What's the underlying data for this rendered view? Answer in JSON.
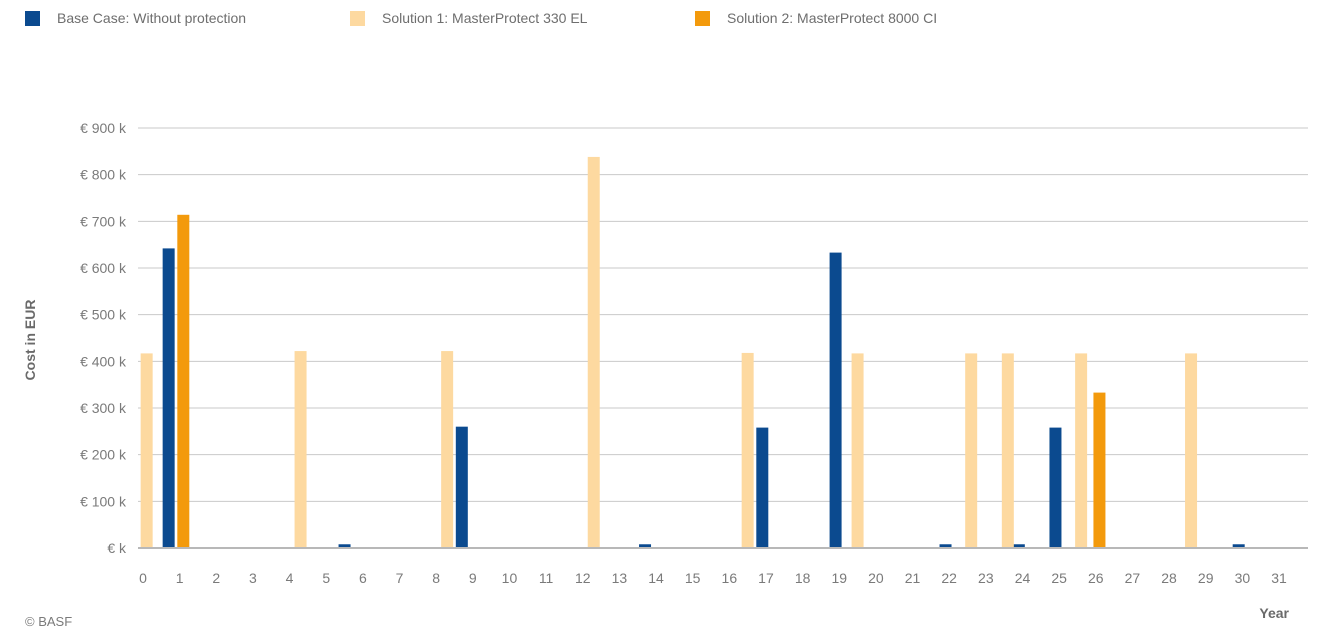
{
  "chart_data": {
    "type": "bar",
    "title": "",
    "xlabel": "Year",
    "ylabel": "Cost in EUR",
    "ylim": [
      0,
      900
    ],
    "yticks": [
      0,
      100,
      200,
      300,
      400,
      500,
      600,
      700,
      800,
      900
    ],
    "ytick_labels": [
      "€ k",
      "€ 100 k",
      "€ 200 k",
      "€ 300 k",
      "€ 400 k",
      "€ 500 k",
      "€ 600 k",
      "€ 700 k",
      "€ 800 k",
      "€ 900 k"
    ],
    "xlim": [
      0,
      31
    ],
    "xticks": [
      0,
      1,
      2,
      3,
      4,
      5,
      6,
      7,
      8,
      9,
      10,
      11,
      12,
      13,
      14,
      15,
      16,
      17,
      18,
      19,
      20,
      21,
      22,
      23,
      24,
      25,
      26,
      27,
      28,
      29,
      30,
      31
    ],
    "grid": true,
    "legend_position": "top-left",
    "series": [
      {
        "name": "Base Case: Without protection",
        "color": "#0b4a8f",
        "points": [
          {
            "x": 0.7,
            "y": 642
          },
          {
            "x": 5.5,
            "y": 8
          },
          {
            "x": 8.7,
            "y": 260
          },
          {
            "x": 13.7,
            "y": 8
          },
          {
            "x": 16.9,
            "y": 258
          },
          {
            "x": 18.9,
            "y": 633
          },
          {
            "x": 21.9,
            "y": 8
          },
          {
            "x": 23.9,
            "y": 8
          },
          {
            "x": 24.9,
            "y": 258
          },
          {
            "x": 29.9,
            "y": 8
          }
        ]
      },
      {
        "name": "Solution 1: MasterProtect 330 EL",
        "color": "#fdd9a0",
        "points": [
          {
            "x": 0.1,
            "y": 417
          },
          {
            "x": 4.3,
            "y": 422
          },
          {
            "x": 8.3,
            "y": 422
          },
          {
            "x": 12.3,
            "y": 838
          },
          {
            "x": 16.5,
            "y": 418
          },
          {
            "x": 19.5,
            "y": 417
          },
          {
            "x": 22.6,
            "y": 417
          },
          {
            "x": 23.6,
            "y": 417
          },
          {
            "x": 25.6,
            "y": 417
          },
          {
            "x": 28.6,
            "y": 417
          }
        ]
      },
      {
        "name": "Solution 2: MasterProtect 8000 CI",
        "color": "#f39a0c",
        "points": [
          {
            "x": 1.1,
            "y": 714
          },
          {
            "x": 26.1,
            "y": 333
          }
        ]
      }
    ]
  },
  "footer": {
    "copyright": "© BASF"
  }
}
